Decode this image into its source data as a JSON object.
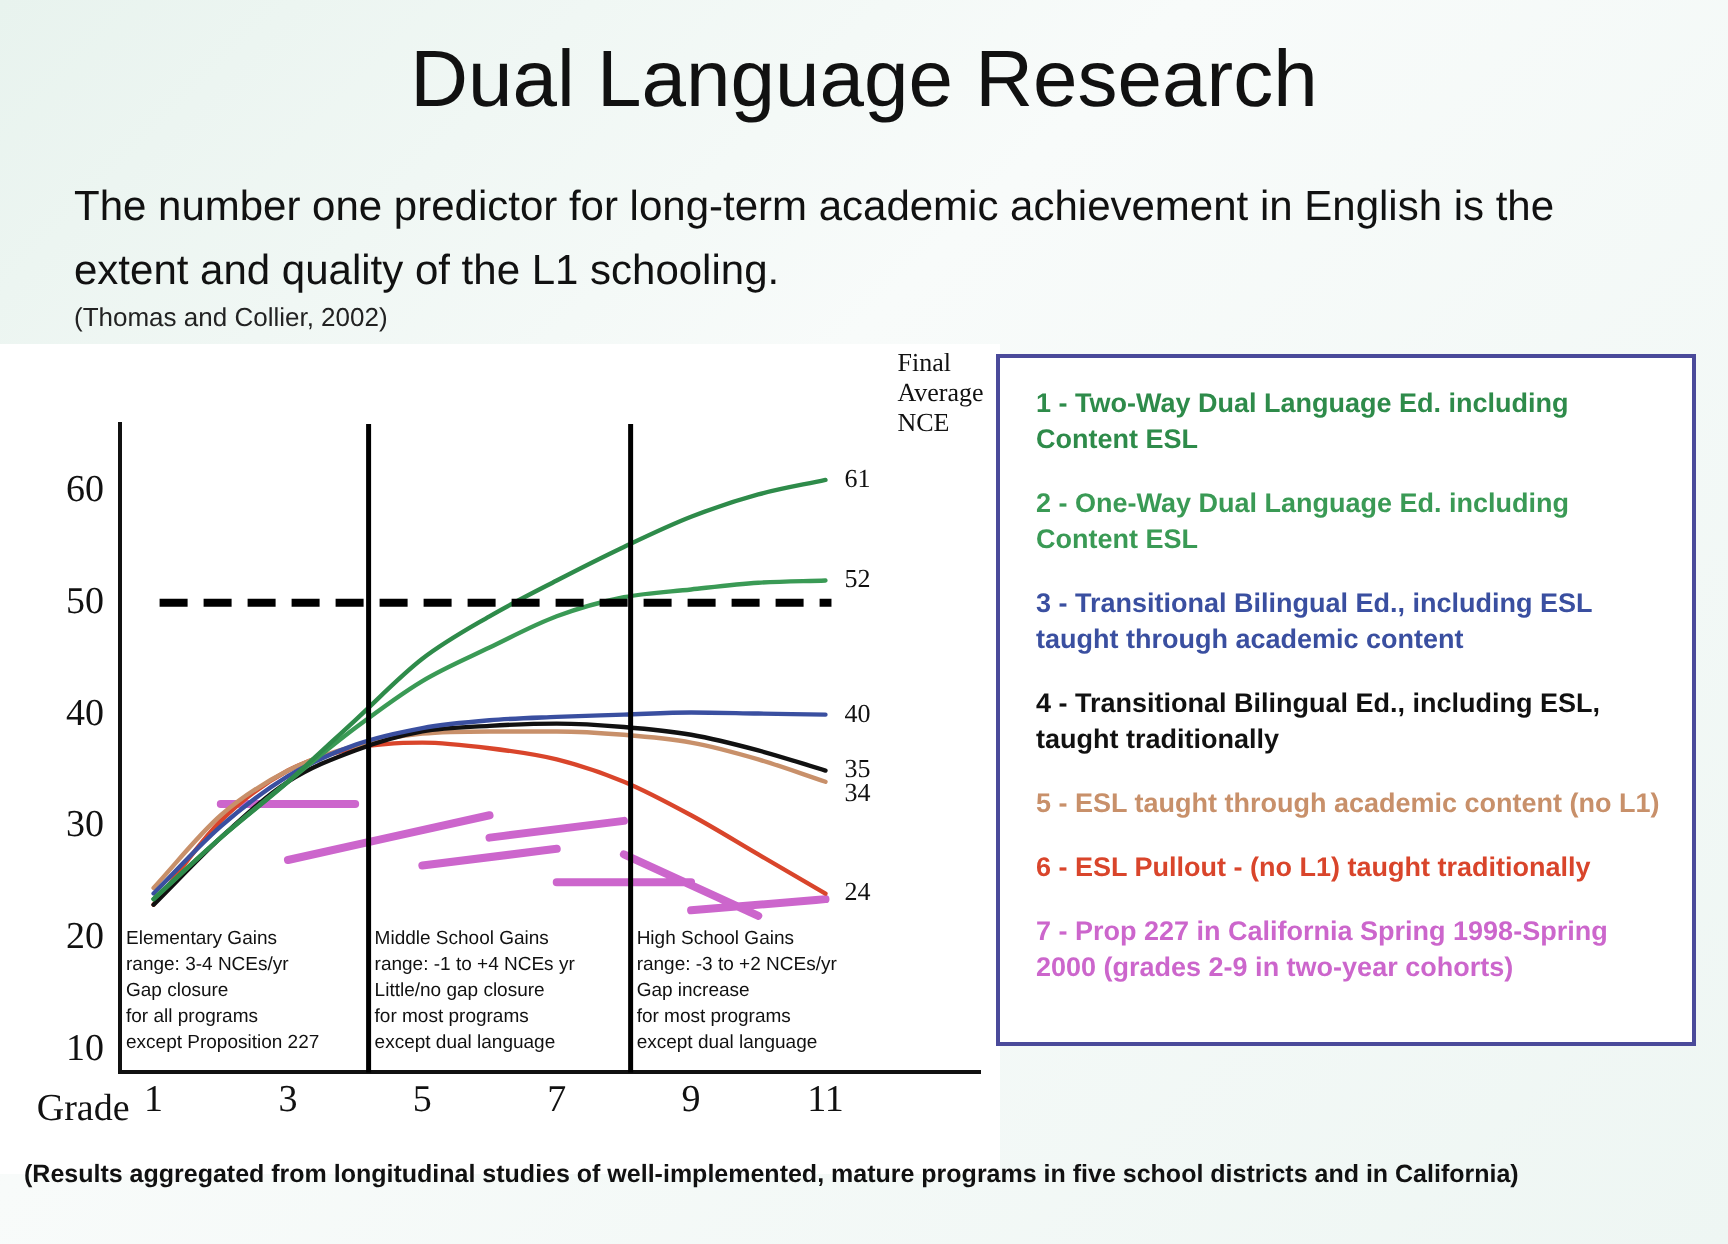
{
  "chart_data": {
    "type": "line",
    "title": "Dual Language Research",
    "subtitle": "The number one predictor for long-term academic achievement in English is the extent and quality of the L1 schooling.",
    "xlabel": "Grade",
    "annotations": [
      "(Thomas and Collier, 2002)",
      "Elementary Gains\nrange: 3-4 NCEs/yr\nGap closure\nfor all programs\nexcept Proposition 227",
      "Middle School Gains\nrange: -1 to +4 NCEs yr\nLittle/no gap closure\nfor most programs\nexcept dual language",
      "High School Gains\nrange: -3 to +2 NCEs/yr\nGap increase\nfor most programs\nexcept dual language",
      "Final\nAverage\nNCE",
      "(Results aggregated from longitudinal studies of well-implemented, mature programs in five school districts and in California)"
    ],
    "x": [
      1,
      2,
      3,
      4,
      5,
      6,
      7,
      8,
      9,
      10,
      11
    ],
    "series": [
      {
        "name": "1 - Two-Way Dual Language Ed. including Content ESL",
        "color": "#2e8b4a",
        "values": [
          23.5,
          29,
          34,
          39.5,
          45,
          48.8,
          52,
          55,
          57.7,
          59.7,
          61
        ],
        "value_labels": [
          null,
          null,
          null,
          null,
          null,
          null,
          null,
          null,
          null,
          null,
          "61"
        ]
      },
      {
        "name": "2 - One-Way Dual Language Ed. including Content ESL",
        "color": "#3a9a55",
        "values": [
          23.5,
          29,
          34,
          38.8,
          43,
          46,
          48.8,
          50.5,
          51.2,
          51.8,
          52
        ],
        "value_labels": [
          null,
          null,
          null,
          null,
          null,
          null,
          null,
          null,
          null,
          null,
          "52"
        ]
      },
      {
        "name": "3 - Transitional Bilingual Ed., including ESL taught through  academic content",
        "color": "#3a4fa0",
        "values": [
          24,
          30,
          34.5,
          37.3,
          38.8,
          39.5,
          39.8,
          40,
          40.2,
          40.1,
          40
        ],
        "value_labels": [
          null,
          null,
          null,
          null,
          null,
          null,
          null,
          null,
          null,
          null,
          "40"
        ]
      },
      {
        "name": "4 - Transitional Bilingual Ed., including ESL, taught traditionally",
        "color": "#111111",
        "values": [
          23,
          29,
          34,
          36.8,
          38.5,
          39,
          39.2,
          38.9,
          38.2,
          36.8,
          35
        ],
        "value_labels": [
          null,
          null,
          null,
          null,
          null,
          null,
          null,
          null,
          null,
          null,
          "35"
        ]
      },
      {
        "name": "5 - ESL taught through academic content (no L1)",
        "color": "#c8906a",
        "values": [
          24.5,
          31,
          35,
          37.2,
          38.3,
          38.5,
          38.5,
          38.2,
          37.5,
          36,
          34
        ],
        "value_labels": [
          null,
          null,
          null,
          null,
          null,
          null,
          null,
          null,
          null,
          null,
          "34"
        ]
      },
      {
        "name": "6 - ESL Pullout - (no L1) taught traditionally",
        "color": "#d9452b",
        "values": [
          23,
          30.5,
          35,
          37,
          37.5,
          37,
          36,
          34,
          31,
          27.5,
          24
        ],
        "value_labels": [
          null,
          null,
          null,
          null,
          null,
          null,
          null,
          null,
          null,
          null,
          "24"
        ]
      },
      {
        "name": "7 - Prop 227 in California Spring 1998-Spring 2000 (grades 2-9 in two-year cohorts)",
        "color": "#cc66cc",
        "x": [
          2,
          4,
          null,
          3,
          6,
          null,
          5,
          7,
          null,
          6,
          8,
          null,
          7,
          9,
          null,
          8,
          10,
          null,
          9,
          11
        ],
        "values": [
          32,
          32,
          null,
          27,
          31,
          null,
          26.5,
          28,
          null,
          29,
          30.5,
          null,
          25,
          25,
          null,
          27.5,
          22,
          null,
          22.5,
          23.5
        ]
      }
    ],
    "xlim": [
      0.5,
      13.3
    ],
    "xticks": [
      1,
      3,
      5,
      7,
      9,
      11
    ],
    "ylim": [
      8,
      66
    ],
    "yticks": [
      10,
      20,
      30,
      40,
      50,
      60
    ],
    "ref_lines": [
      {
        "axis": "y",
        "value": 50,
        "color": "#000000",
        "line_style": "dashed"
      },
      {
        "axis": "x",
        "value": 4.2,
        "color": "#000000"
      },
      {
        "axis": "x",
        "value": 8.1,
        "color": "#000000"
      }
    ],
    "grid": false,
    "legend": "right",
    "marker": "none",
    "line_style": "solid"
  }
}
